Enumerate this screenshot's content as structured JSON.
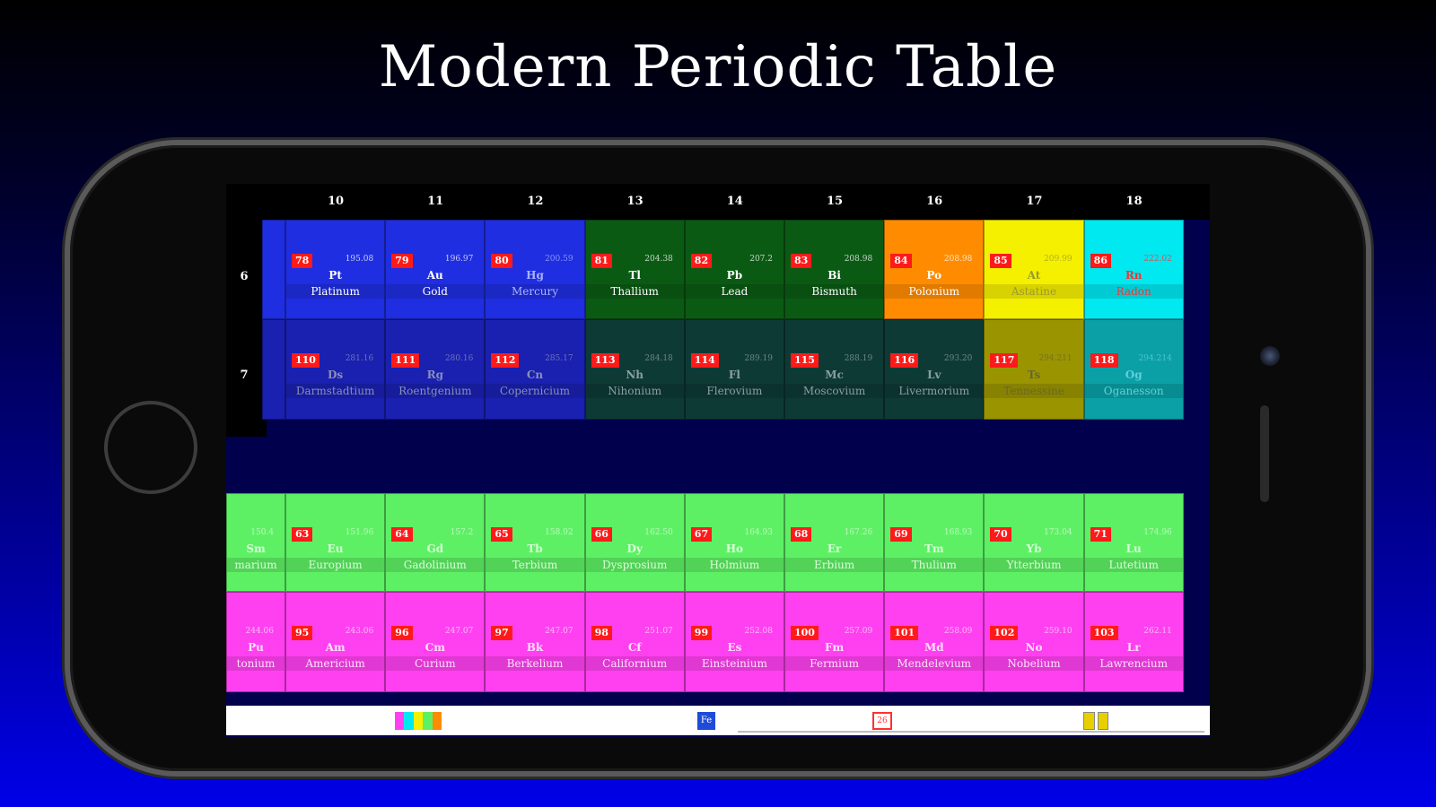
{
  "headline": "Modern Periodic Table",
  "group_headers": [
    "10",
    "11",
    "12",
    "13",
    "14",
    "15",
    "16",
    "17",
    "18"
  ],
  "period_labels": [
    "6",
    "7"
  ],
  "rows": {
    "period6": [
      {
        "num": "78",
        "mass": "195.08",
        "sym": "Pt",
        "name": "Platinum",
        "bg": "#1f2ee0",
        "fg": "#ffffff"
      },
      {
        "num": "79",
        "mass": "196.97",
        "sym": "Au",
        "name": "Gold",
        "bg": "#1f2ee0",
        "fg": "#ffffff"
      },
      {
        "num": "80",
        "mass": "200.59",
        "sym": "Hg",
        "name": "Mercury",
        "bg": "#1f2ee0",
        "fg": "#aab4ff"
      },
      {
        "num": "81",
        "mass": "204.38",
        "sym": "Tl",
        "name": "Thallium",
        "bg": "#0b5a14",
        "fg": "#ffffff"
      },
      {
        "num": "82",
        "mass": "207.2",
        "sym": "Pb",
        "name": "Lead",
        "bg": "#0b5a14",
        "fg": "#ffffff"
      },
      {
        "num": "83",
        "mass": "208.98",
        "sym": "Bi",
        "name": "Bismuth",
        "bg": "#0b5a14",
        "fg": "#ffffff"
      },
      {
        "num": "84",
        "mass": "208.98",
        "sym": "Po",
        "name": "Polonium",
        "bg": "#ff8c00",
        "fg": "#ffffff"
      },
      {
        "num": "85",
        "mass": "209.99",
        "sym": "At",
        "name": "Astatine",
        "bg": "#f5f000",
        "fg": "#9a9a30"
      },
      {
        "num": "86",
        "mass": "222.02",
        "sym": "Rn",
        "name": "Radon",
        "bg": "#00e8f0",
        "fg": "#ff3030"
      }
    ],
    "period7": [
      {
        "num": "110",
        "mass": "281.16",
        "sym": "Ds",
        "name": "Darmstadtium",
        "bg": "#1a20b0",
        "fg": "#8890b8"
      },
      {
        "num": "111",
        "mass": "280.16",
        "sym": "Rg",
        "name": "Roentgenium",
        "bg": "#1a20b0",
        "fg": "#8890b8"
      },
      {
        "num": "112",
        "mass": "285.17",
        "sym": "Cn",
        "name": "Copernicium",
        "bg": "#1a20b0",
        "fg": "#8890b8"
      },
      {
        "num": "113",
        "mass": "284.18",
        "sym": "Nh",
        "name": "Nihonium",
        "bg": "#0e3a36",
        "fg": "#8aa09c"
      },
      {
        "num": "114",
        "mass": "289.19",
        "sym": "Fl",
        "name": "Flerovium",
        "bg": "#0e3a36",
        "fg": "#8aa09c"
      },
      {
        "num": "115",
        "mass": "288.19",
        "sym": "Mc",
        "name": "Moscovium",
        "bg": "#0e3a36",
        "fg": "#8aa09c"
      },
      {
        "num": "116",
        "mass": "293.20",
        "sym": "Lv",
        "name": "Livermorium",
        "bg": "#0e3a36",
        "fg": "#8aa09c"
      },
      {
        "num": "117",
        "mass": "294.211",
        "sym": "Ts",
        "name": "Tennessine",
        "bg": "#9a9400",
        "fg": "#6a6630"
      },
      {
        "num": "118",
        "mass": "294.214",
        "sym": "Og",
        "name": "Oganesson",
        "bg": "#0aa0a6",
        "fg": "#60d0d8"
      }
    ],
    "lanthanides": [
      {
        "num": "63",
        "mass": "151.96",
        "sym": "Eu",
        "name": "Europium"
      },
      {
        "num": "64",
        "mass": "157.2",
        "sym": "Gd",
        "name": "Gadolinium"
      },
      {
        "num": "65",
        "mass": "158.92",
        "sym": "Tb",
        "name": "Terbium"
      },
      {
        "num": "66",
        "mass": "162.50",
        "sym": "Dy",
        "name": "Dysprosium"
      },
      {
        "num": "67",
        "mass": "164.93",
        "sym": "Ho",
        "name": "Holmium"
      },
      {
        "num": "68",
        "mass": "167.26",
        "sym": "Er",
        "name": "Erbium"
      },
      {
        "num": "69",
        "mass": "168.93",
        "sym": "Tm",
        "name": "Thulium"
      },
      {
        "num": "70",
        "mass": "173.04",
        "sym": "Yb",
        "name": "Ytterbium"
      },
      {
        "num": "71",
        "mass": "174.96",
        "sym": "Lu",
        "name": "Lutetium"
      }
    ],
    "lanthanide_partial": {
      "mass": "150.4",
      "sym": "Sm",
      "name": "marium"
    },
    "actinides": [
      {
        "num": "95",
        "mass": "243.06",
        "sym": "Am",
        "name": "Americium"
      },
      {
        "num": "96",
        "mass": "247.07",
        "sym": "Cm",
        "name": "Curium"
      },
      {
        "num": "97",
        "mass": "247.07",
        "sym": "Bk",
        "name": "Berkelium"
      },
      {
        "num": "98",
        "mass": "251.07",
        "sym": "Cf",
        "name": "Californium"
      },
      {
        "num": "99",
        "mass": "252.08",
        "sym": "Es",
        "name": "Einsteinium"
      },
      {
        "num": "100",
        "mass": "257.09",
        "sym": "Fm",
        "name": "Fermium"
      },
      {
        "num": "101",
        "mass": "258.09",
        "sym": "Md",
        "name": "Mendelevium"
      },
      {
        "num": "102",
        "mass": "259.10",
        "sym": "No",
        "name": "Nobelium"
      },
      {
        "num": "103",
        "mass": "262.11",
        "sym": "Lr",
        "name": "Lawrencium"
      }
    ],
    "actinide_partial": {
      "mass": "244.06",
      "sym": "Pu",
      "name": "tonium"
    }
  },
  "colors": {
    "lanthanide_bg": "#5ef064",
    "lanthanide_fg": "#d8ffd8",
    "actinide_bg": "#ff40f0",
    "actinide_fg": "#ffe0ff",
    "partial_p6_bg": "#1f2ee0",
    "partial_p7_bg": "#1a20b0"
  },
  "bottom_bar": {
    "colors_icon": "color-legend-icon",
    "element_icon_label": "Fe",
    "number_icon_label": "26",
    "lanthanide_icon": "lanthanide-toggle-icon"
  }
}
